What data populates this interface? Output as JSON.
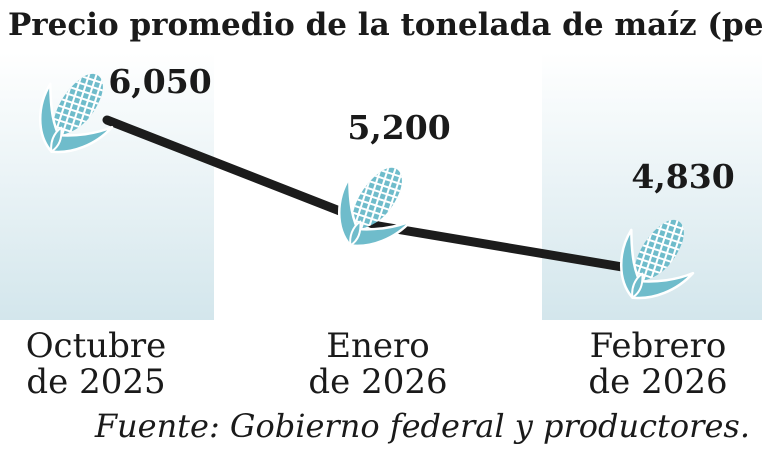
{
  "chart_data": {
    "type": "line",
    "title": "Precio promedio de la tonelada de maíz (pesos)",
    "categories": [
      [
        "Octubre",
        "de 2025"
      ],
      [
        "Enero",
        "de 2026"
      ],
      [
        "Febrero",
        "de 2026"
      ]
    ],
    "values": [
      6050,
      5200,
      4830
    ],
    "value_labels": [
      "6,050",
      "5,200",
      "4,830"
    ],
    "marker_icon": "corn-cob-icon",
    "source": "Fuente: Gobierno federal y productores.",
    "colors": {
      "line": "#1c1c1c",
      "band_top": "#ffffff",
      "band_bottom": "#d3e6ec",
      "corn": "#6fbccb",
      "corn_grid": "#ffffff"
    },
    "grid": false,
    "legend": "none"
  }
}
